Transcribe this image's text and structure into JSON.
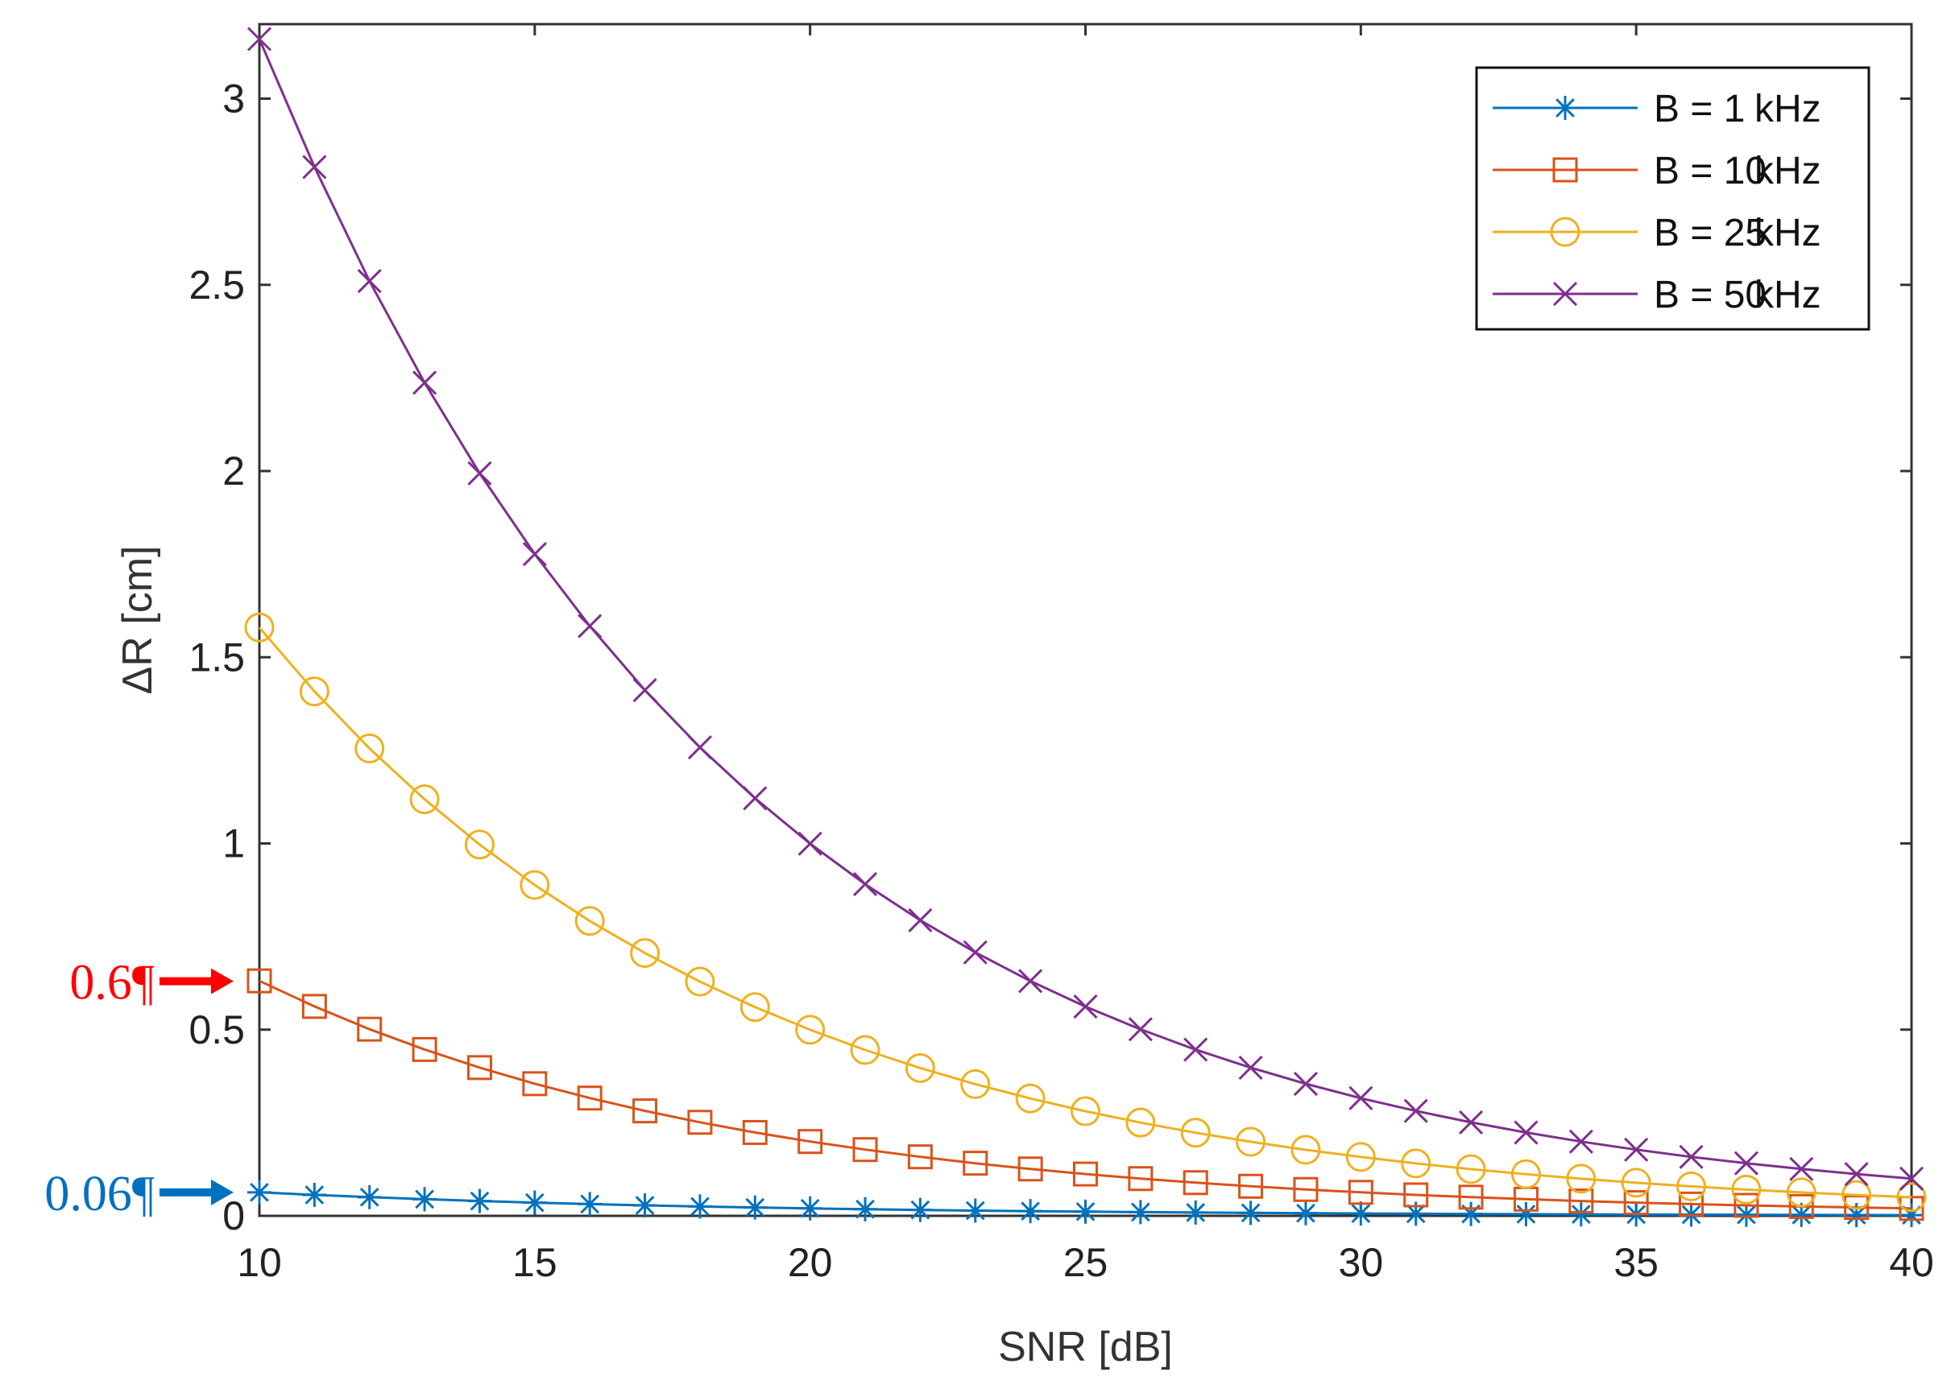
{
  "chart_data": {
    "type": "line",
    "xlabel": "SNR [dB]",
    "ylabel": "ΔR [cm]",
    "xlim": [
      10,
      40
    ],
    "ylim": [
      0,
      3.2
    ],
    "xticks": [
      10,
      15,
      20,
      25,
      30,
      35,
      40
    ],
    "yticks": [
      0,
      0.5,
      1,
      1.5,
      2,
      2.5,
      3
    ],
    "ytick_labels": [
      "0",
      "0.5",
      "1",
      "1.5",
      "2",
      "2.5",
      "3"
    ],
    "legend_position": "top-right",
    "x": [
      10,
      11,
      12,
      13,
      14,
      15,
      16,
      17,
      18,
      19,
      20,
      21,
      22,
      23,
      24,
      25,
      26,
      27,
      28,
      29,
      30,
      31,
      32,
      33,
      34,
      35,
      36,
      37,
      38,
      39,
      40
    ],
    "series": [
      {
        "name": "B = 1kHz",
        "legend_prefix": "B = 1",
        "legend_suffix": "kHz",
        "color": "#0072BD",
        "marker": "star",
        "initial": 0.0631,
        "decay": 0.89125
      },
      {
        "name": "B = 10kHz",
        "legend_prefix": "B = 10",
        "legend_suffix": "kHz",
        "color": "#D95319",
        "marker": "square",
        "initial": 0.631,
        "decay": 0.89125
      },
      {
        "name": "B = 25kHz",
        "legend_prefix": "B = 25",
        "legend_suffix": "kHz",
        "color": "#EDB120",
        "marker": "circle",
        "initial": 1.58,
        "decay": 0.89125
      },
      {
        "name": "B = 50kHz",
        "legend_prefix": "B = 50",
        "legend_suffix": "kHz",
        "color": "#7E2F8E",
        "marker": "x",
        "initial": 3.16,
        "decay": 0.89125
      }
    ],
    "annotations": [
      {
        "text": "0.6¶",
        "value": 0.63,
        "color": "#FF0000"
      },
      {
        "text": "0.06¶",
        "value": 0.063,
        "color": "#0070C0"
      }
    ]
  }
}
